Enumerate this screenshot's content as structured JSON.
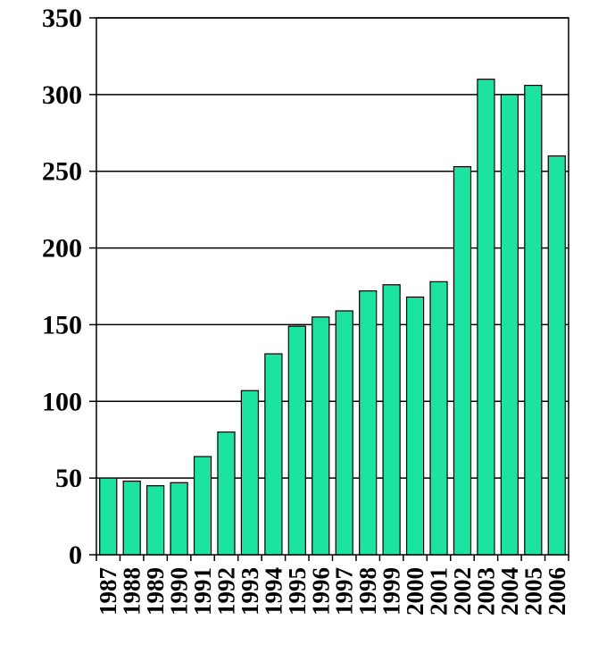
{
  "chart_data": {
    "type": "bar",
    "title": "",
    "xlabel": "",
    "ylabel": "",
    "categories": [
      "1987",
      "1988",
      "1989",
      "1990",
      "1991",
      "1992",
      "1993",
      "1994",
      "1995",
      "1996",
      "1997",
      "1998",
      "1999",
      "2000",
      "2001",
      "2002",
      "2003",
      "2004",
      "2005",
      "2006"
    ],
    "values": [
      50,
      48,
      45,
      47,
      64,
      80,
      107,
      131,
      149,
      155,
      159,
      172,
      176,
      168,
      178,
      253,
      310,
      300,
      306,
      260
    ],
    "ylim": [
      0,
      350
    ],
    "yticks": [
      0,
      50,
      100,
      150,
      200,
      250,
      300,
      350
    ],
    "grid": true,
    "legend": "none",
    "colors": {
      "bar": "#1de3a0",
      "bar_stroke": "#000000",
      "grid": "#000000"
    }
  }
}
